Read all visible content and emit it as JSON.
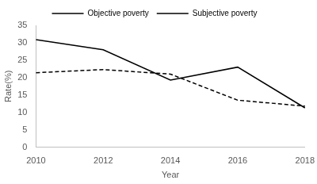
{
  "chart_data": {
    "type": "line",
    "x_label": "Year",
    "y_label": "Rate(%)",
    "categories": [
      "2010",
      "2012",
      "2014",
      "2016",
      "2018"
    ],
    "series": [
      {
        "name": "Objective poverty",
        "color": "#000000",
        "line_style": "dashed",
        "marker": "none",
        "values": [
          21.4,
          22.3,
          21.0,
          13.5,
          11.8
        ]
      },
      {
        "name": "Subjective poverty",
        "color": "#000000",
        "line_style": "solid",
        "marker": "none",
        "values": [
          30.9,
          28.0,
          19.3,
          23.0,
          11.3
        ]
      }
    ],
    "ylim": [
      0,
      35
    ],
    "yticks": [
      0,
      5,
      10,
      15,
      20,
      25,
      30,
      35
    ],
    "grid": false,
    "legend": "top"
  }
}
